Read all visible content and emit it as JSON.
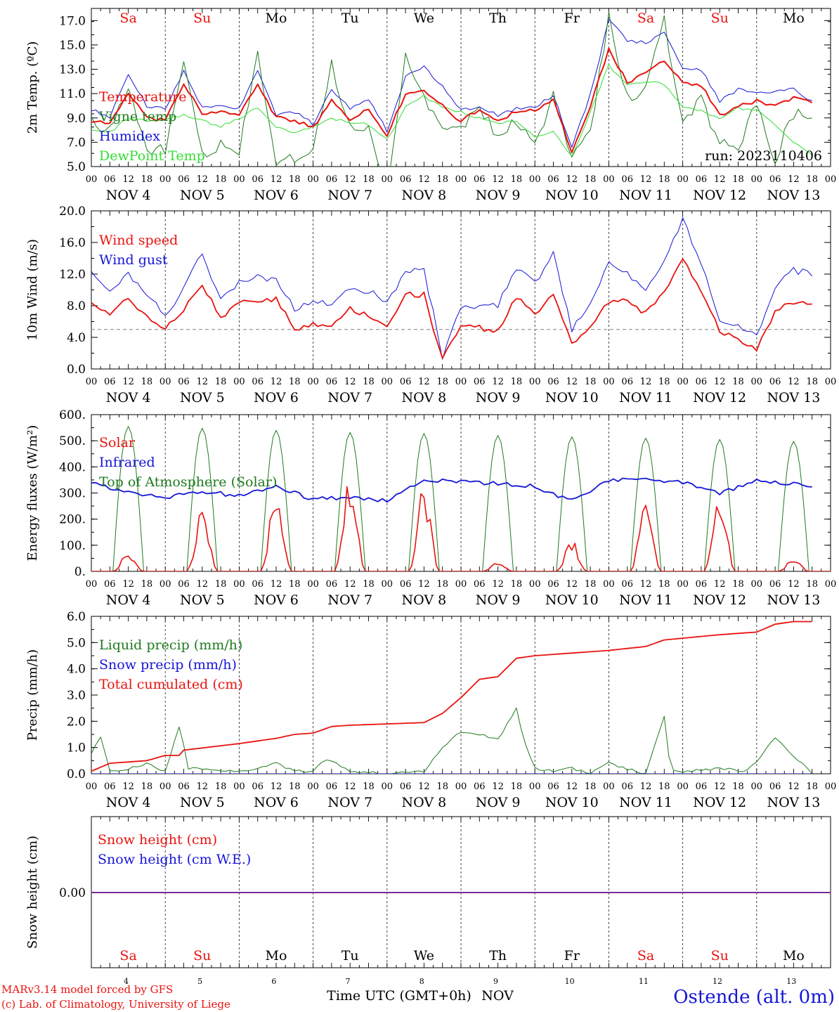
{
  "days": {
    "abbr": [
      "Sa",
      "Su",
      "Mo",
      "Tu",
      "We",
      "Th",
      "Fr",
      "Sa",
      "Su",
      "Mo"
    ],
    "numbers": [
      "4",
      "5",
      "6",
      "7",
      "8",
      "9",
      "10",
      "11",
      "12",
      "13"
    ],
    "weekend": [
      true,
      true,
      false,
      false,
      false,
      false,
      false,
      true,
      true,
      false
    ],
    "month": "NOV",
    "hour_ticks": [
      "00",
      "06",
      "12",
      "18"
    ],
    "end_tick": "00"
  },
  "colors": {
    "red": "#e8130f",
    "blue": "#1515d8",
    "dkgreen": "#1f7a1f",
    "ltgreen": "#33dd33",
    "weekend": "#e8130f",
    "weekday": "#000000",
    "snow": "#7a2a9a"
  },
  "chart_data": [
    {
      "type": "line",
      "ylabel": "2m Temp. (ºC)",
      "ylim": [
        5,
        18
      ],
      "yticks": [
        "5.0",
        "7.0",
        "9.0",
        "11.0",
        "13.0",
        "15.0",
        "17.0"
      ],
      "run_label": "run: 2023110406",
      "series": [
        {
          "name": "Temperature",
          "color": "red",
          "x": [
            0,
            6,
            12,
            18,
            24,
            30,
            36,
            42,
            48,
            54,
            60,
            66,
            72,
            78,
            84,
            90,
            96,
            102,
            108,
            114,
            120,
            126,
            132,
            138,
            144,
            150,
            156,
            162,
            168,
            174,
            180,
            186,
            192,
            198,
            204,
            210,
            216,
            222,
            228,
            234
          ],
          "values": [
            8.8,
            8.5,
            11.0,
            9.0,
            8.8,
            11.9,
            9.2,
            9.5,
            9.2,
            11.7,
            9.0,
            8.8,
            8.2,
            10.4,
            8.8,
            9.8,
            7.6,
            11.0,
            11.3,
            10.0,
            8.7,
            9.7,
            8.8,
            9.5,
            9.6,
            10.6,
            6.2,
            10.0,
            14.6,
            11.9,
            12.8,
            13.8,
            11.9,
            11.7,
            9.2,
            10.0,
            10.4,
            10.0,
            10.7,
            10.2
          ]
        },
        {
          "name": "Vigne temp",
          "color": "dkgreen",
          "x": [
            0,
            6,
            12,
            18,
            24,
            30,
            36,
            42,
            48,
            54,
            60,
            66,
            72,
            78,
            84,
            90,
            96,
            102,
            108,
            114,
            120,
            126,
            132,
            138,
            144,
            150,
            156,
            162,
            168,
            174,
            180,
            186,
            192,
            198,
            204,
            210,
            216,
            222,
            228,
            234
          ],
          "values": [
            8.6,
            8.2,
            11.8,
            6.5,
            6.2,
            14.0,
            6.0,
            6.8,
            6.1,
            14.5,
            5.6,
            5.5,
            6.2,
            13.5,
            8.0,
            8.2,
            3.4,
            14.1,
            10.6,
            8.2,
            8.3,
            9.7,
            7.4,
            8.8,
            6.8,
            11.0,
            5.5,
            7.7,
            17.3,
            10.5,
            11.5,
            17.0,
            8.7,
            10.5,
            7.0,
            6.3,
            10.5,
            5.6,
            9.4,
            8.6
          ]
        },
        {
          "name": "Humidex",
          "color": "blue",
          "x": [
            0,
            6,
            12,
            18,
            24,
            30,
            36,
            42,
            48,
            54,
            60,
            66,
            72,
            78,
            84,
            90,
            96,
            102,
            108,
            114,
            120,
            126,
            132,
            138,
            144,
            150,
            156,
            162,
            168,
            174,
            180,
            186,
            192,
            198,
            204,
            210,
            216,
            222,
            228,
            234
          ],
          "values": [
            9.7,
            9.0,
            12.7,
            10.0,
            9.8,
            12.9,
            9.8,
            10.1,
            9.8,
            13.0,
            9.2,
            9.5,
            8.5,
            11.4,
            9.8,
            10.6,
            7.9,
            12.4,
            13.2,
            11.6,
            9.6,
            9.9,
            9.2,
            9.8,
            9.8,
            10.9,
            6.5,
            10.9,
            17.0,
            15.4,
            15.2,
            16.0,
            13.2,
            13.0,
            10.4,
            11.3,
            11.2,
            11.2,
            11.5,
            10.3
          ]
        },
        {
          "name": "DewPoint Temp",
          "color": "ltgreen",
          "x": [
            0,
            6,
            12,
            18,
            24,
            30,
            36,
            42,
            48,
            54,
            60,
            66,
            72,
            78,
            84,
            90,
            96,
            102,
            108,
            114,
            120,
            126,
            132,
            138,
            144,
            150,
            156,
            162,
            168,
            174,
            180,
            186,
            192,
            198,
            204,
            210,
            216,
            222,
            228,
            234
          ],
          "values": [
            8.0,
            7.8,
            9.0,
            8.8,
            8.8,
            9.3,
            8.8,
            8.3,
            9.0,
            9.8,
            8.2,
            7.8,
            8.2,
            9.0,
            8.6,
            8.5,
            7.2,
            9.9,
            10.8,
            9.8,
            9.5,
            9.0,
            8.5,
            8.8,
            7.5,
            7.8,
            5.8,
            9.5,
            13.3,
            11.7,
            12.0,
            11.8,
            10.0,
            9.6,
            9.0,
            9.8,
            9.6,
            8.5,
            7.0,
            6.0
          ]
        }
      ]
    },
    {
      "type": "line",
      "ylabel": "10m Wind (m/s)",
      "ylim": [
        0,
        20
      ],
      "yticks": [
        "0.0",
        "4.0",
        "8.0",
        "12.0",
        "16.0",
        "20.0"
      ],
      "reference_line": 5.0,
      "series": [
        {
          "name": "Wind speed",
          "color": "red",
          "x": [
            0,
            6,
            12,
            18,
            24,
            30,
            36,
            42,
            48,
            54,
            60,
            66,
            72,
            78,
            84,
            90,
            96,
            102,
            108,
            114,
            120,
            126,
            132,
            138,
            144,
            150,
            156,
            162,
            168,
            174,
            180,
            186,
            192,
            198,
            204,
            210,
            216,
            222,
            228,
            234
          ],
          "values": [
            8.7,
            6.5,
            9.0,
            6.5,
            5.2,
            7.5,
            10.6,
            6.5,
            8.3,
            8.8,
            8.8,
            5.1,
            5.7,
            5.7,
            7.6,
            6.8,
            5.6,
            9.4,
            9.4,
            1.2,
            5.8,
            5.2,
            4.8,
            9.2,
            7.0,
            9.6,
            3.0,
            5.0,
            8.6,
            8.5,
            7.1,
            9.8,
            14.2,
            9.8,
            4.7,
            3.8,
            2.5,
            7.3,
            8.4,
            8.0
          ]
        },
        {
          "name": "Wind gust",
          "color": "blue",
          "x": [
            0,
            6,
            12,
            18,
            24,
            30,
            36,
            42,
            48,
            54,
            60,
            66,
            72,
            78,
            84,
            90,
            96,
            102,
            108,
            114,
            120,
            126,
            132,
            138,
            144,
            150,
            156,
            162,
            168,
            174,
            180,
            186,
            192,
            198,
            204,
            210,
            216,
            222,
            228,
            234
          ],
          "values": [
            12.2,
            9.5,
            12.0,
            9.2,
            7.0,
            10.0,
            14.8,
            8.5,
            10.8,
            11.8,
            11.2,
            7.5,
            8.3,
            8.5,
            10.4,
            9.8,
            8.5,
            12.0,
            12.6,
            1.5,
            8.0,
            7.6,
            8.0,
            12.8,
            10.7,
            15.0,
            4.8,
            8.5,
            13.3,
            12.2,
            10.1,
            14.0,
            19.0,
            13.5,
            6.0,
            5.2,
            4.3,
            10.5,
            12.4,
            12.1
          ]
        }
      ]
    },
    {
      "type": "line",
      "ylabel": "Energy fluxes (W/m²)",
      "ylim": [
        0,
        600
      ],
      "yticks": [
        "0.",
        "100.",
        "200.",
        "300.",
        "400.",
        "500.",
        "600."
      ],
      "series": [
        {
          "name": "Solar",
          "color": "red",
          "peaks": [
            75,
            245,
            330,
            365,
            335,
            35,
            120,
            305,
            330,
            50
          ]
        },
        {
          "name": "Infrared",
          "color": "blue",
          "x": [
            0,
            12,
            24,
            36,
            48,
            60,
            72,
            84,
            96,
            108,
            120,
            132,
            144,
            156,
            168,
            180,
            192,
            204,
            216,
            234
          ],
          "values": [
            340,
            300,
            285,
            305,
            290,
            325,
            275,
            285,
            270,
            350,
            345,
            335,
            325,
            270,
            350,
            355,
            340,
            300,
            345,
            330
          ]
        },
        {
          "name": "Top of Atmosphere (Solar)",
          "color": "dkgreen",
          "peaks": [
            555,
            548,
            540,
            532,
            528,
            520,
            515,
            510,
            505,
            498
          ]
        }
      ]
    },
    {
      "type": "line",
      "ylabel": "Precip (mm/h)",
      "ylim": [
        0,
        6
      ],
      "yticks": [
        "0.0",
        "1.0",
        "2.0",
        "3.0",
        "4.0",
        "5.0",
        "6.0"
      ],
      "series": [
        {
          "name": "Liquid precip (mm/h)",
          "color": "dkgreen",
          "x": [
            0,
            3,
            6,
            12,
            18,
            24,
            29,
            31,
            36,
            48,
            54,
            60,
            66,
            72,
            76,
            78,
            84,
            96,
            108,
            114,
            120,
            126,
            132,
            138,
            140,
            144,
            150,
            156,
            162,
            168,
            180,
            186,
            188,
            192,
            204,
            212,
            216,
            222,
            234
          ],
          "values": [
            0.8,
            1.4,
            0.1,
            0.2,
            0.4,
            0.1,
            2.0,
            0.2,
            0.2,
            0.1,
            0.2,
            0.4,
            0.1,
            0.1,
            0.6,
            0.5,
            0.1,
            0.0,
            0.1,
            1.0,
            1.6,
            1.5,
            1.3,
            2.5,
            1.4,
            0.2,
            0.1,
            0.2,
            0.0,
            0.4,
            0.0,
            2.2,
            0.2,
            0.1,
            0.2,
            0.1,
            0.5,
            1.4,
            0.0
          ]
        },
        {
          "name": "Snow precip (mm/h)",
          "color": "blue",
          "x": [
            0,
            234
          ],
          "values": [
            0,
            0
          ]
        },
        {
          "name": "Total cumulated (cm)",
          "color": "red",
          "x": [
            0,
            6,
            18,
            24,
            29,
            30,
            48,
            60,
            66,
            72,
            78,
            84,
            96,
            108,
            114,
            120,
            126,
            132,
            138,
            144,
            156,
            168,
            180,
            186,
            204,
            216,
            222,
            228,
            234
          ],
          "values": [
            0.1,
            0.4,
            0.5,
            0.7,
            0.7,
            0.9,
            1.15,
            1.35,
            1.5,
            1.55,
            1.8,
            1.85,
            1.9,
            1.95,
            2.3,
            2.9,
            3.6,
            3.7,
            4.4,
            4.5,
            4.6,
            4.7,
            4.85,
            5.1,
            5.3,
            5.4,
            5.7,
            5.8,
            5.8
          ]
        }
      ]
    },
    {
      "type": "line",
      "ylabel": "Snow height (cm)",
      "ytick": "0.00",
      "series": [
        {
          "name": "Snow height (cm)",
          "color": "red",
          "values": [
            0,
            0
          ]
        },
        {
          "name": "Snow height (cm W.E.)",
          "color": "blue",
          "values": [
            0,
            0
          ]
        }
      ]
    }
  ],
  "footer": {
    "xlabel": "Time UTC (GMT+0h)",
    "month": "NOV",
    "credit1": "MARv3.14 model forced by GFS",
    "credit2": "(c) Lab. of Climatology, University of Liege",
    "station": "Ostende (alt. 0m)"
  }
}
